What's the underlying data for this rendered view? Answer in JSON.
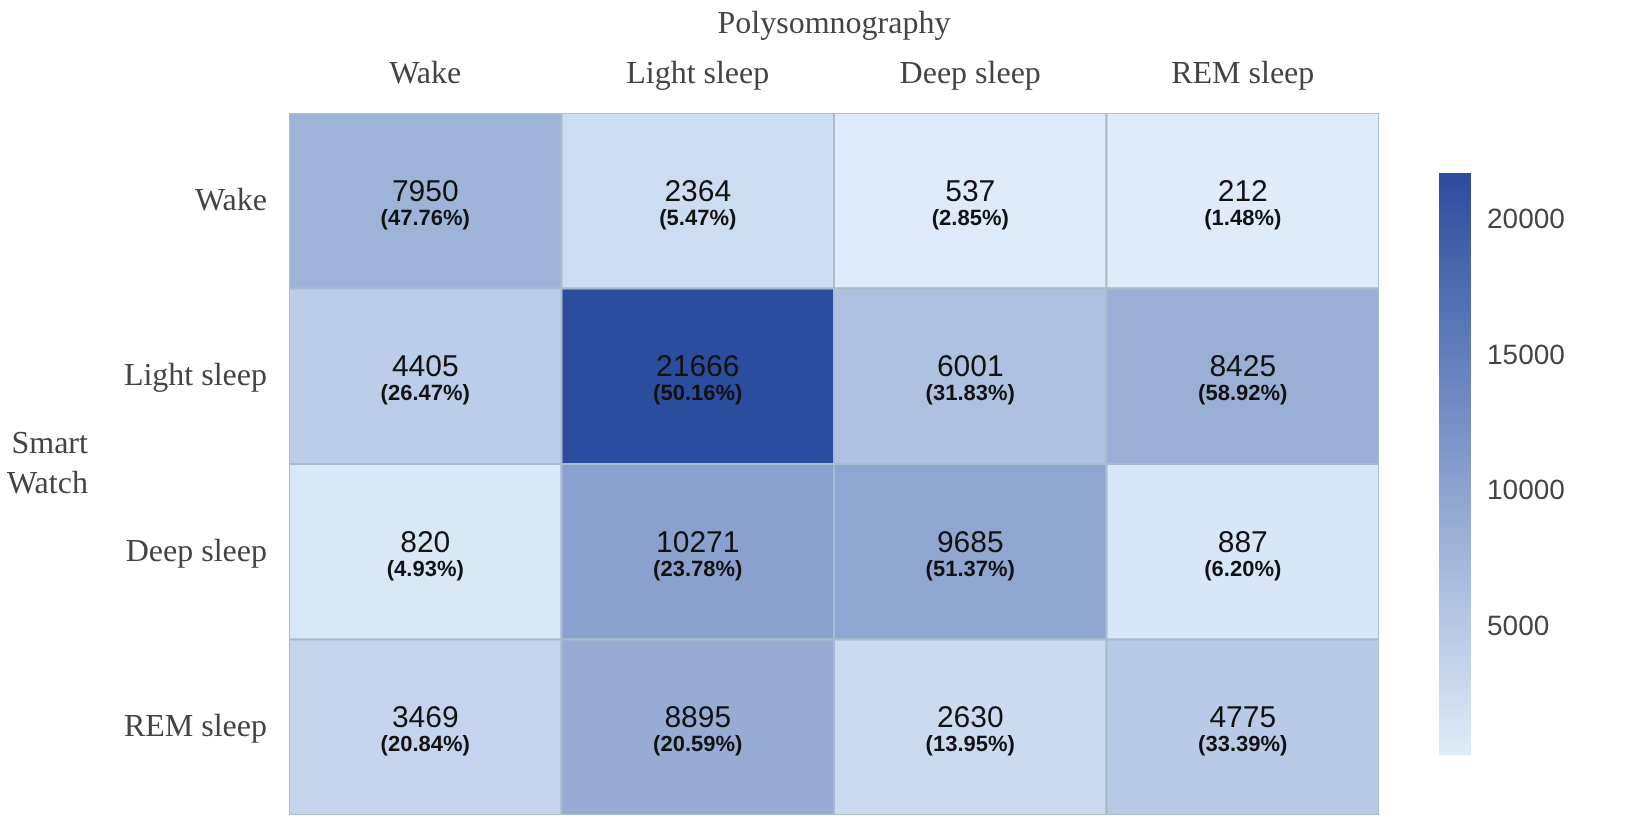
{
  "chart_data": {
    "type": "heatmap",
    "xlabel": "Polysomnography",
    "ylabel": "Smart Watch",
    "categories": [
      "Wake",
      "Light sleep",
      "Deep sleep",
      "REM sleep"
    ],
    "y_categories": [
      "Wake",
      "Light sleep",
      "Deep sleep",
      "REM sleep"
    ],
    "cells": [
      [
        7950,
        2364,
        537,
        212
      ],
      [
        4405,
        21666,
        6001,
        8425
      ],
      [
        820,
        10271,
        9685,
        887
      ],
      [
        3469,
        8895,
        2630,
        4775
      ]
    ],
    "cell_labels": [
      [
        "7950\n(47.76%)",
        "2364\n(5.47%)",
        "537\n(2.85%)",
        "212\n(1.48%)"
      ],
      [
        "4405\n(26.47%)",
        "21666\n(50.16%)",
        "6001\n(31.83%)",
        "8425\n(58.92%)"
      ],
      [
        "820\n(4.93%)",
        "10271\n(23.78%)",
        "9685\n(51.37%)",
        "887\n(6.20%)"
      ],
      [
        "3469\n(20.84%)",
        "8895\n(20.59%)",
        "2630\n(13.95%)",
        "4775\n(33.39%)"
      ]
    ],
    "clim": [
      212,
      21666
    ],
    "cticks": [
      5000,
      10000,
      15000,
      20000
    ]
  }
}
